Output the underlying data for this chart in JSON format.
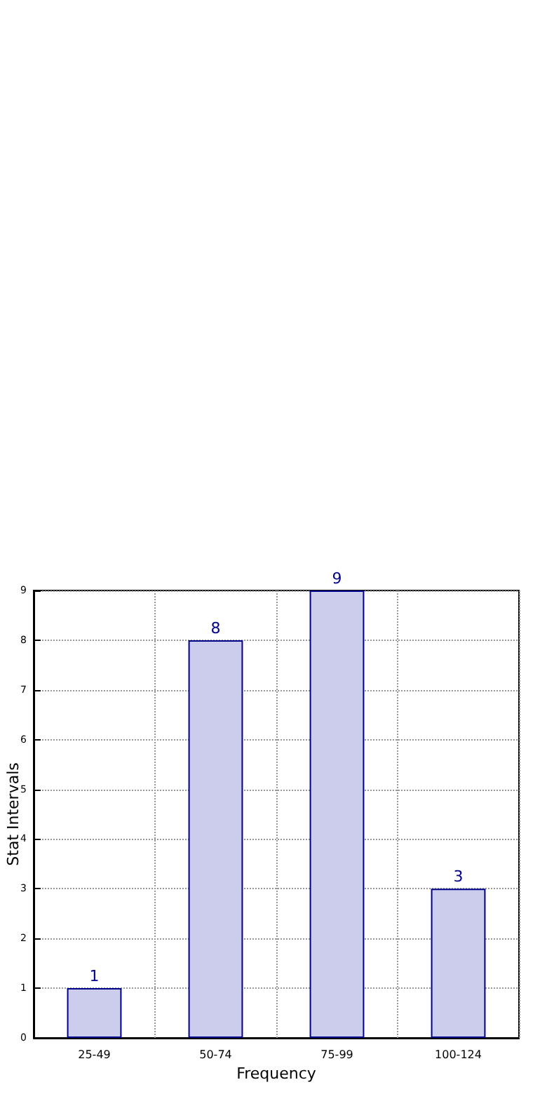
{
  "chart_data": {
    "type": "bar",
    "xlabel": "Frequency",
    "ylabel": "Stat Intervals",
    "categories": [
      "25-49",
      "50-74",
      "75-99",
      "100-124"
    ],
    "values": [
      1,
      8,
      9,
      3
    ],
    "color": "#ccccec",
    "ylim": [
      0,
      9
    ],
    "yticks": [
      0,
      1,
      2,
      3,
      4,
      5,
      6,
      7,
      8,
      9
    ],
    "grid": true,
    "data_labels": true
  }
}
